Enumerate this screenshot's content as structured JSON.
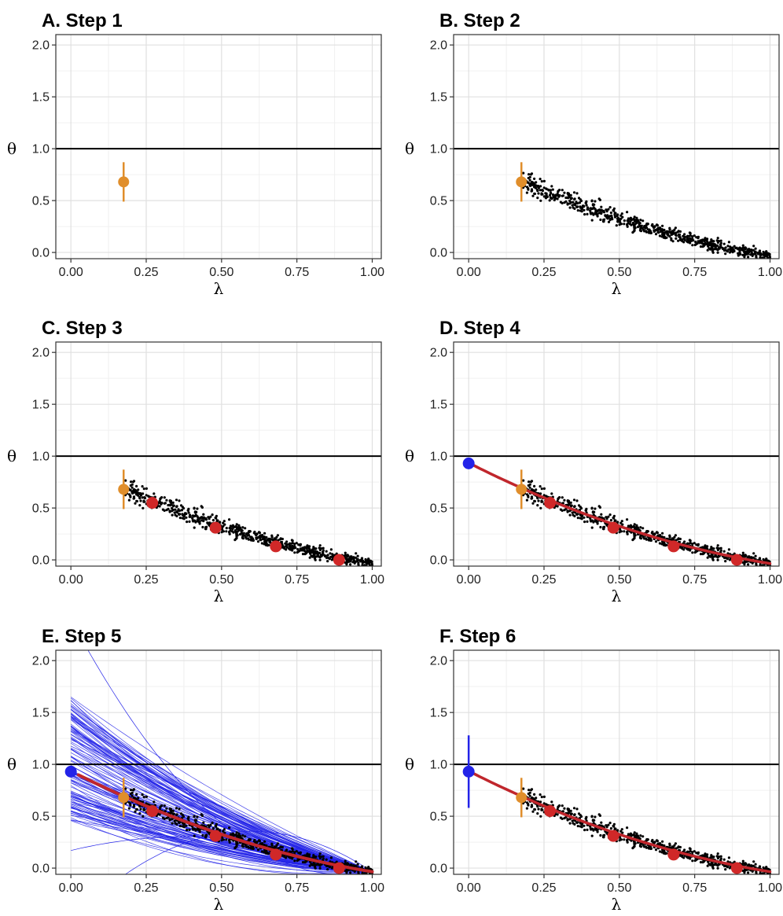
{
  "chart_data": [
    {
      "type": "scatter",
      "title": "A. Step 1",
      "xlabel": "λ",
      "ylabel": "θ",
      "xlim": [
        -0.05,
        1.03
      ],
      "ylim": [
        -0.06,
        2.1
      ],
      "x_ticks": [
        "0.00",
        "0.25",
        "0.50",
        "0.75",
        "1.00"
      ],
      "y_ticks": [
        "0.0",
        "0.5",
        "1.0",
        "1.5",
        "2.0"
      ],
      "grid": true,
      "reference_line": {
        "y": 1.0,
        "color": "#000000"
      },
      "layers": {
        "observed_point": {
          "x": 0.175,
          "y": 0.68,
          "ymin": 0.49,
          "ymax": 0.87,
          "color": "#E08E2B"
        }
      }
    },
    {
      "type": "scatter",
      "title": "B. Step 2",
      "xlabel": "λ",
      "ylabel": "θ",
      "xlim": [
        -0.05,
        1.03
      ],
      "ylim": [
        -0.06,
        2.1
      ],
      "x_ticks": [
        "0.00",
        "0.25",
        "0.50",
        "0.75",
        "1.00"
      ],
      "y_ticks": [
        "0.0",
        "0.5",
        "1.0",
        "1.5",
        "2.0"
      ],
      "grid": true,
      "reference_line": {
        "y": 1.0,
        "color": "#000000"
      },
      "layers": {
        "observed_point": {
          "x": 0.175,
          "y": 0.68,
          "ymin": 0.49,
          "ymax": 0.87,
          "color": "#E08E2B"
        },
        "simulated_cloud": {
          "x_range": [
            0.18,
            1.0
          ],
          "count": 700,
          "spread": 0.045,
          "color": "#000000"
        }
      }
    },
    {
      "type": "scatter",
      "title": "C. Step 3",
      "xlabel": "λ",
      "ylabel": "θ",
      "xlim": [
        -0.05,
        1.03
      ],
      "ylim": [
        -0.06,
        2.1
      ],
      "x_ticks": [
        "0.00",
        "0.25",
        "0.50",
        "0.75",
        "1.00"
      ],
      "y_ticks": [
        "0.0",
        "0.5",
        "1.0",
        "1.5",
        "2.0"
      ],
      "grid": true,
      "reference_line": {
        "y": 1.0,
        "color": "#000000"
      },
      "layers": {
        "observed_point": {
          "x": 0.175,
          "y": 0.68,
          "ymin": 0.49,
          "ymax": 0.87,
          "color": "#E08E2B"
        },
        "simulated_cloud": {
          "x_range": [
            0.18,
            1.0
          ],
          "count": 700,
          "spread": 0.045,
          "color": "#000000"
        },
        "bin_means": {
          "x": [
            0.27,
            0.48,
            0.68,
            0.89
          ],
          "y": [
            0.55,
            0.31,
            0.13,
            0.0
          ],
          "color": "#D02828"
        }
      }
    },
    {
      "type": "scatter",
      "title": "D. Step 4",
      "xlabel": "λ",
      "ylabel": "θ",
      "xlim": [
        -0.05,
        1.03
      ],
      "ylim": [
        -0.06,
        2.1
      ],
      "x_ticks": [
        "0.00",
        "0.25",
        "0.50",
        "0.75",
        "1.00"
      ],
      "y_ticks": [
        "0.0",
        "0.5",
        "1.0",
        "1.5",
        "2.0"
      ],
      "grid": true,
      "reference_line": {
        "y": 1.0,
        "color": "#000000"
      },
      "layers": {
        "observed_point": {
          "x": 0.175,
          "y": 0.68,
          "ymin": 0.49,
          "ymax": 0.87,
          "color": "#E08E2B"
        },
        "simulated_cloud": {
          "x_range": [
            0.18,
            1.0
          ],
          "count": 700,
          "spread": 0.045,
          "color": "#000000"
        },
        "bin_means": {
          "x": [
            0.27,
            0.48,
            0.68,
            0.89
          ],
          "y": [
            0.55,
            0.31,
            0.13,
            0.0
          ],
          "color": "#D02828"
        },
        "fitted_curve": {
          "color": "#C0262C"
        },
        "extrapolated_point": {
          "x": 0.0,
          "y": 0.93,
          "color": "#2323E8"
        }
      }
    },
    {
      "type": "scatter",
      "title": "E. Step 5",
      "xlabel": "λ",
      "ylabel": "θ",
      "xlim": [
        -0.05,
        1.03
      ],
      "ylim": [
        -0.06,
        2.1
      ],
      "x_ticks": [
        "0.00",
        "0.25",
        "0.50",
        "0.75",
        "1.00"
      ],
      "y_ticks": [
        "0.0",
        "0.5",
        "1.0",
        "1.5",
        "2.0"
      ],
      "grid": true,
      "reference_line": {
        "y": 1.0,
        "color": "#000000"
      },
      "layers": {
        "bootstrap_curves": {
          "count": 120,
          "intercept_range": [
            0.44,
            1.65
          ],
          "outlier_intercepts": [
            2.4,
            0.17,
            -0.5
          ],
          "color": "#2323E8"
        },
        "simulated_cloud": {
          "x_range": [
            0.18,
            1.0
          ],
          "count": 700,
          "spread": 0.045,
          "color": "#000000"
        },
        "fitted_curve": {
          "color": "#C0262C"
        },
        "observed_point": {
          "x": 0.175,
          "y": 0.68,
          "ymin": 0.49,
          "ymax": 0.87,
          "color": "#E08E2B"
        },
        "bin_means": {
          "x": [
            0.27,
            0.48,
            0.68,
            0.89
          ],
          "y": [
            0.55,
            0.31,
            0.13,
            0.0
          ],
          "color": "#D02828"
        },
        "extrapolated_point": {
          "x": 0.0,
          "y": 0.93,
          "color": "#2323E8"
        }
      }
    },
    {
      "type": "scatter",
      "title": "F. Step 6",
      "xlabel": "λ",
      "ylabel": "θ",
      "xlim": [
        -0.05,
        1.03
      ],
      "ylim": [
        -0.06,
        2.1
      ],
      "x_ticks": [
        "0.00",
        "0.25",
        "0.50",
        "0.75",
        "1.00"
      ],
      "y_ticks": [
        "0.0",
        "0.5",
        "1.0",
        "1.5",
        "2.0"
      ],
      "grid": true,
      "reference_line": {
        "y": 1.0,
        "color": "#000000"
      },
      "layers": {
        "observed_point": {
          "x": 0.175,
          "y": 0.68,
          "ymin": 0.49,
          "ymax": 0.87,
          "color": "#E08E2B"
        },
        "simulated_cloud": {
          "x_range": [
            0.18,
            1.0
          ],
          "count": 700,
          "spread": 0.045,
          "color": "#000000"
        },
        "bin_means": {
          "x": [
            0.27,
            0.48,
            0.68,
            0.89
          ],
          "y": [
            0.55,
            0.31,
            0.13,
            0.0
          ],
          "color": "#D02828"
        },
        "fitted_curve": {
          "color": "#C0262C"
        },
        "extrapolated_point": {
          "x": 0.0,
          "y": 0.93,
          "ymin": 0.58,
          "ymax": 1.28,
          "color": "#2323E8"
        }
      }
    }
  ]
}
